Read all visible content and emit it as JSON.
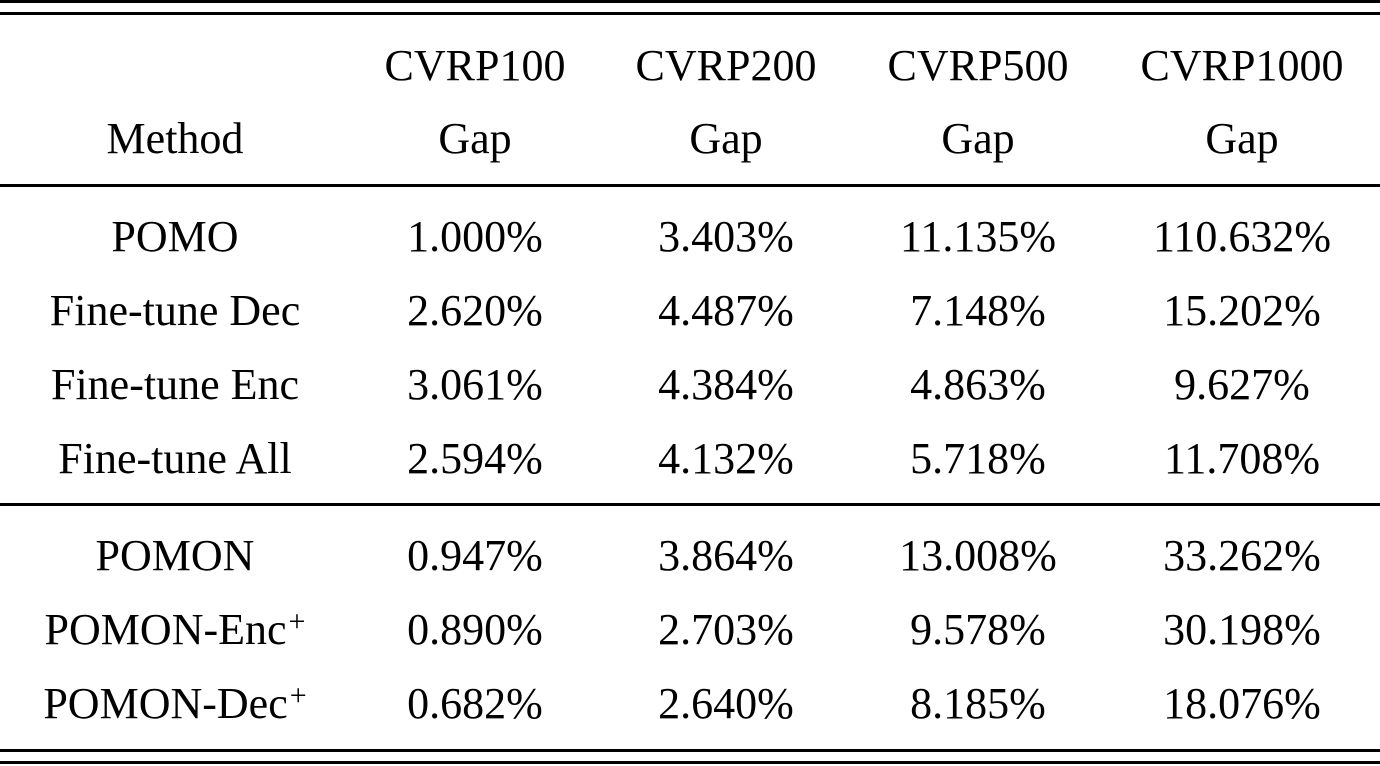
{
  "table": {
    "header_top": [
      "",
      "CVRP100",
      "CVRP200",
      "CVRP500",
      "CVRP1000"
    ],
    "header_bottom": [
      "Method",
      "Gap",
      "Gap",
      "Gap",
      "Gap"
    ],
    "group1": [
      {
        "method": "POMO",
        "sup": "",
        "values": [
          "1.000%",
          "3.403%",
          "11.135%",
          "110.632%"
        ]
      },
      {
        "method": "Fine-tune Dec",
        "sup": "",
        "values": [
          "2.620%",
          "4.487%",
          "7.148%",
          "15.202%"
        ]
      },
      {
        "method": "Fine-tune Enc",
        "sup": "",
        "values": [
          "3.061%",
          "4.384%",
          "4.863%",
          "9.627%"
        ]
      },
      {
        "method": "Fine-tune All",
        "sup": "",
        "values": [
          "2.594%",
          "4.132%",
          "5.718%",
          "11.708%"
        ]
      }
    ],
    "group2": [
      {
        "method": "POMON",
        "sup": "",
        "values": [
          "0.947%",
          "3.864%",
          "13.008%",
          "33.262%"
        ]
      },
      {
        "method": "POMON-Enc",
        "sup": "+",
        "values": [
          "0.890%",
          "2.703%",
          "9.578%",
          "30.198%"
        ]
      },
      {
        "method": "POMON-Dec",
        "sup": "+",
        "values": [
          "0.682%",
          "2.640%",
          "8.185%",
          "18.076%"
        ]
      }
    ]
  }
}
